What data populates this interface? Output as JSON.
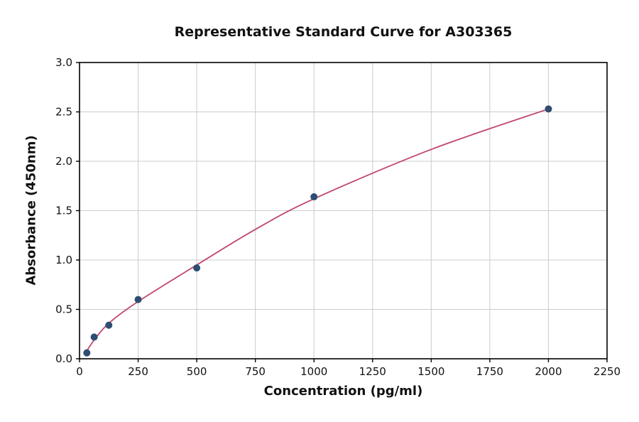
{
  "chart_data": {
    "type": "scatter",
    "title": "Representative Standard Curve for A303365",
    "xlabel": "Concentration (pg/ml)",
    "ylabel": "Absorbance (450nm)",
    "xlim": [
      0,
      2250
    ],
    "ylim": [
      0,
      3.0
    ],
    "x_ticks": [
      0,
      250,
      500,
      750,
      1000,
      1250,
      1500,
      1750,
      2000,
      2250
    ],
    "x_tick_labels": [
      "0",
      "250",
      "500",
      "750",
      "1000",
      "1250",
      "1500",
      "1750",
      "2000",
      "2250"
    ],
    "y_ticks": [
      0,
      0.5,
      1,
      1.5,
      2,
      2.5,
      3
    ],
    "y_tick_labels": [
      "0.0",
      "0.5",
      "1.0",
      "1.5",
      "2.0",
      "2.5",
      "3.0"
    ],
    "grid": true,
    "grid_color": "#cccccc",
    "axis_color": "#000000",
    "background": "#ffffff",
    "series": [
      {
        "name": "standard-points",
        "type": "scatter",
        "color": "#2e4d72",
        "marker_radius": 5,
        "x": [
          31.25,
          62.5,
          125,
          250,
          500,
          1000,
          2000
        ],
        "y": [
          0.06,
          0.22,
          0.34,
          0.6,
          0.92,
          1.64,
          2.53
        ]
      },
      {
        "name": "fit-curve",
        "type": "line",
        "color": "#c0486e",
        "line_width": 1.8,
        "x": [
          20,
          31.25,
          62.5,
          125,
          250,
          500,
          750,
          1000,
          1500,
          2000
        ],
        "y": [
          0.04,
          0.08,
          0.19,
          0.36,
          0.58,
          0.95,
          1.31,
          1.62,
          2.12,
          2.53
        ]
      }
    ]
  }
}
